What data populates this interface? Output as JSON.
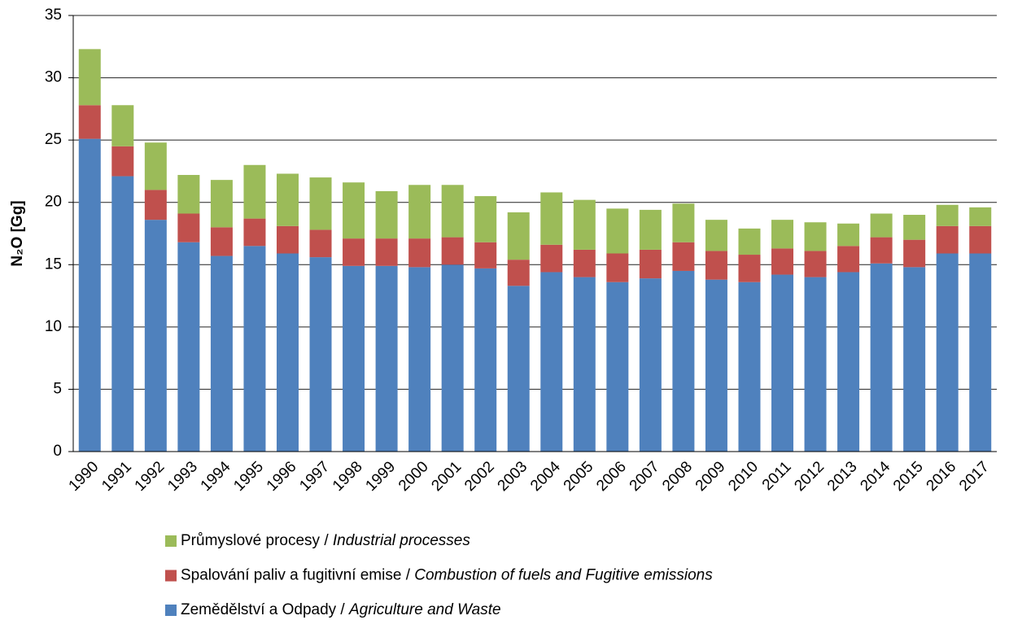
{
  "chart_data": {
    "type": "stacked_bar",
    "y_label": "N₂O [Gg]",
    "categories": [
      "1990",
      "1991",
      "1992",
      "1993",
      "1994",
      "1995",
      "1996",
      "1997",
      "1998",
      "1999",
      "2000",
      "2001",
      "2002",
      "2003",
      "2004",
      "2005",
      "2006",
      "2007",
      "2008",
      "2009",
      "2010",
      "2011",
      "2012",
      "2013",
      "2014",
      "2015",
      "2016",
      "2017"
    ],
    "series": [
      {
        "name": "Zemědělství a Odpady / Agriculture and Waste",
        "color": "#4f81bd",
        "values": [
          25.1,
          22.1,
          18.6,
          16.8,
          15.7,
          16.5,
          15.9,
          15.6,
          14.9,
          14.9,
          14.8,
          15.0,
          14.7,
          13.3,
          14.4,
          14.0,
          13.6,
          13.9,
          14.5,
          13.8,
          13.6,
          14.2,
          14.0,
          14.4,
          15.1,
          14.8,
          15.9,
          15.9
        ]
      },
      {
        "name": "Spalování paliv a fugitivní emise / Combustion of fuels and Fugitive emissions",
        "color": "#c0504d",
        "values": [
          2.7,
          2.4,
          2.4,
          2.3,
          2.3,
          2.2,
          2.2,
          2.2,
          2.2,
          2.2,
          2.3,
          2.2,
          2.1,
          2.1,
          2.2,
          2.2,
          2.3,
          2.3,
          2.3,
          2.3,
          2.2,
          2.1,
          2.1,
          2.1,
          2.1,
          2.2,
          2.2,
          2.2
        ]
      },
      {
        "name": "Průmyslové procesy / Industrial processes",
        "color": "#9bbb59",
        "values": [
          4.5,
          3.3,
          3.8,
          3.1,
          3.8,
          4.3,
          4.2,
          4.2,
          4.5,
          3.8,
          4.3,
          4.2,
          3.7,
          3.8,
          4.2,
          4.0,
          3.6,
          3.2,
          3.1,
          2.5,
          2.1,
          2.3,
          2.3,
          1.8,
          1.9,
          2.0,
          1.7,
          1.5
        ]
      }
    ],
    "ylim": [
      0,
      35
    ],
    "yticks": [
      0,
      5,
      10,
      15,
      20,
      25,
      30,
      35
    ],
    "grid": true
  }
}
